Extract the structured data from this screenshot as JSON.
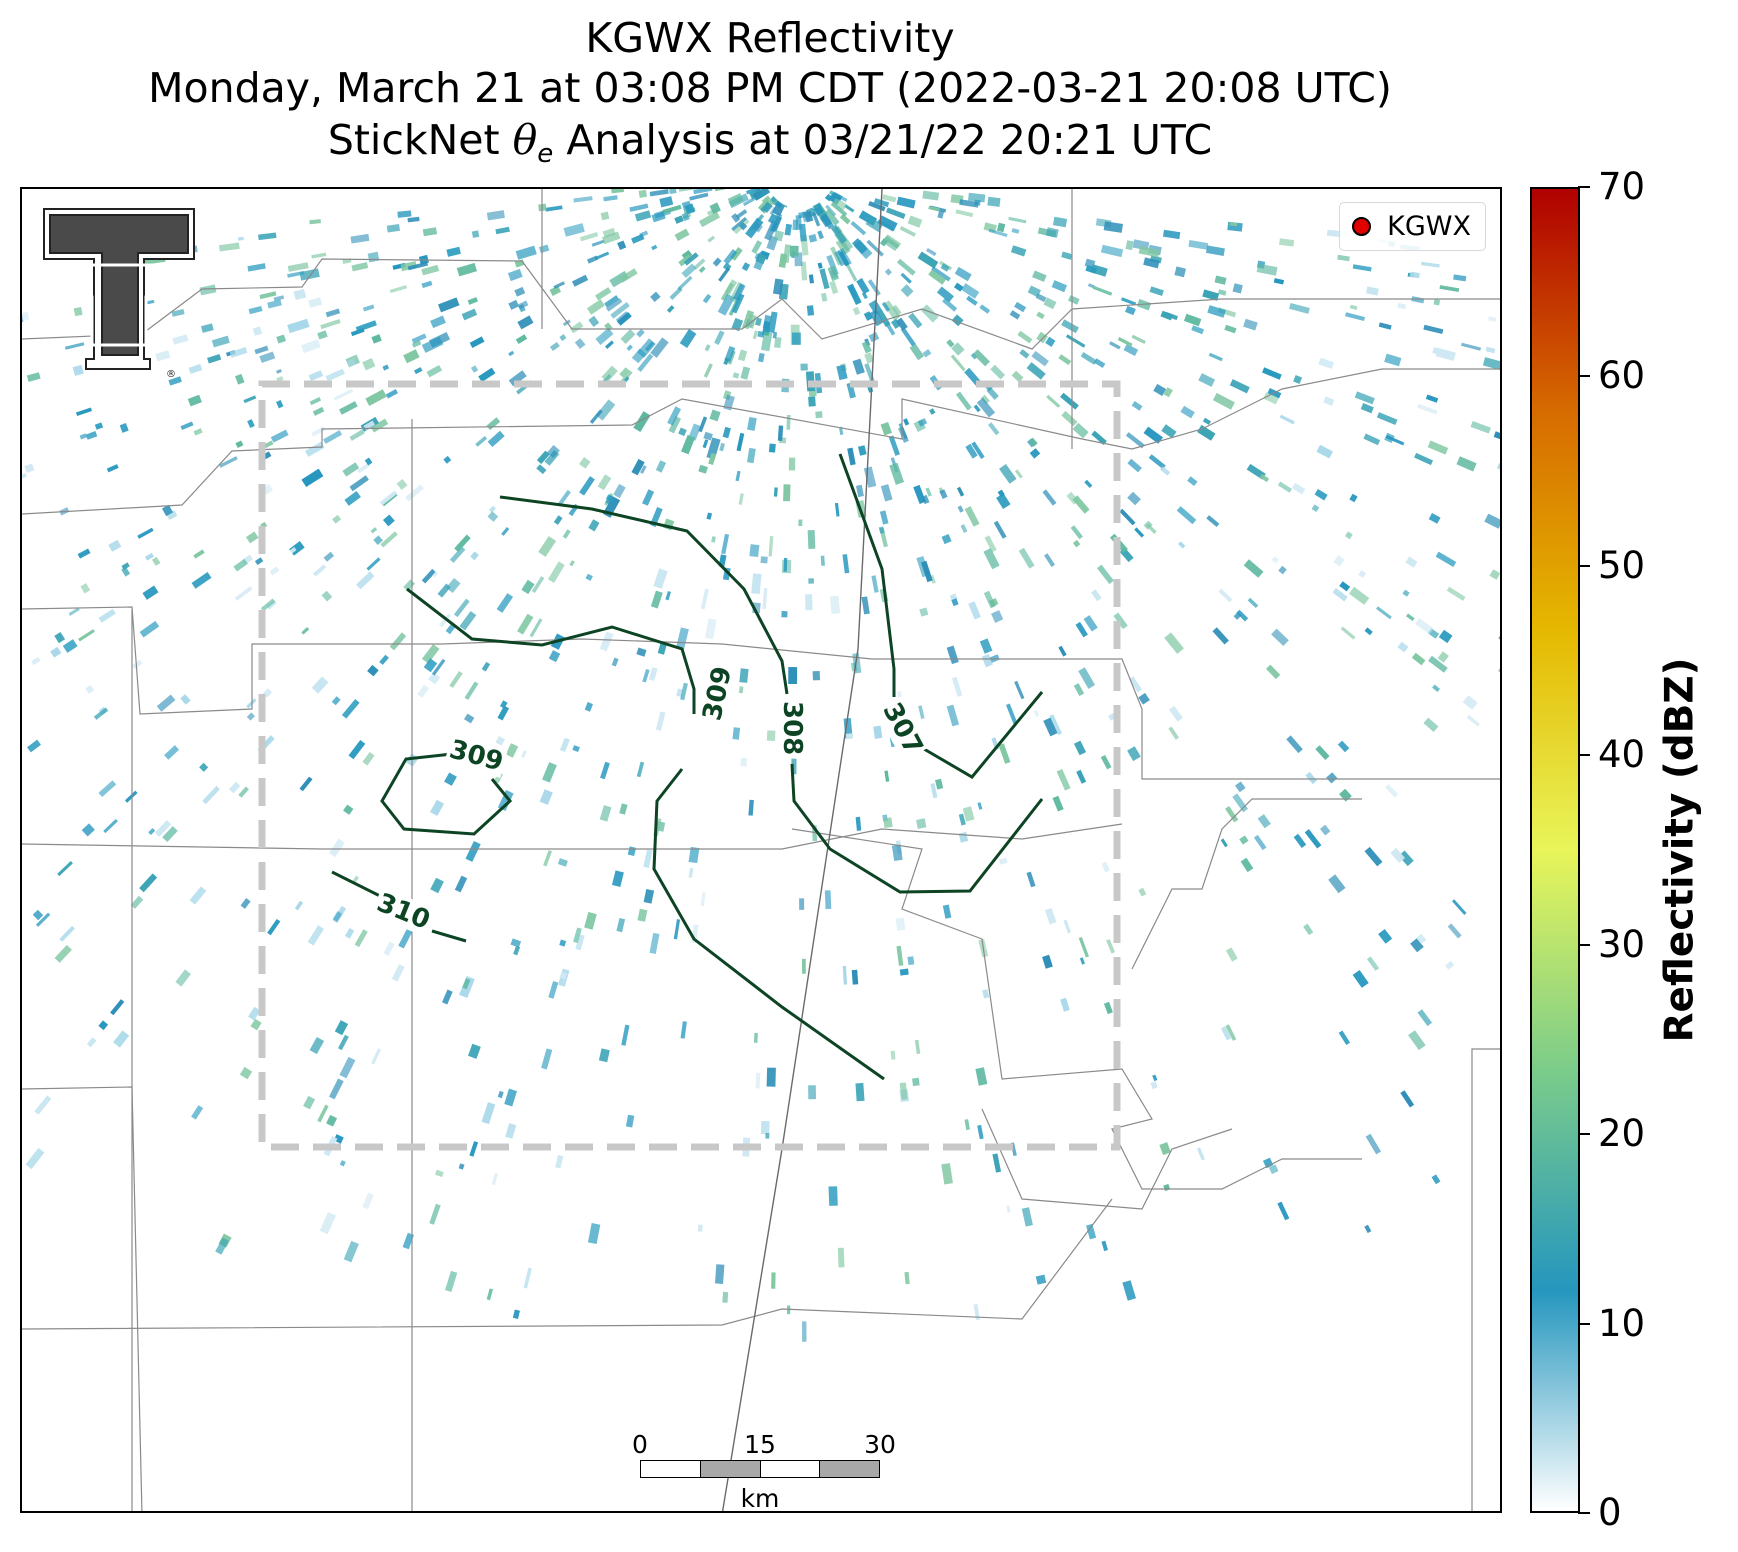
{
  "title": {
    "line1": "KGWX Reflectivity",
    "line2": "Monday, March 21 at 03:08 PM CDT (2022-03-21 20:08 UTC)",
    "line3_prefix": "StickNet ",
    "line3_symbol": "θ",
    "line3_subscript": "e",
    "line3_suffix": " Analysis at 03/21/22 20:21 UTC"
  },
  "logo": {
    "glyph": "T",
    "mark": "®"
  },
  "legend": {
    "label": "KGWX",
    "marker_color": "#e00000"
  },
  "scalebar": {
    "ticks": [
      "0",
      "15",
      "30"
    ],
    "unit": "km"
  },
  "colorbar": {
    "label": "Reflectivity (dBZ)",
    "ticks": [
      "0",
      "10",
      "20",
      "30",
      "40",
      "50",
      "60",
      "70"
    ],
    "colors": [
      "#ffffff",
      "#2596be",
      "#7bcc8a",
      "#e8f55a",
      "#e5b800",
      "#d66a00",
      "#b00000"
    ]
  },
  "contours": {
    "color": "#0d4424",
    "labels": [
      "310",
      "309",
      "309",
      "308",
      "307"
    ]
  },
  "analysis_box": {
    "style": "dashed",
    "color": "#c8c8c8"
  }
}
